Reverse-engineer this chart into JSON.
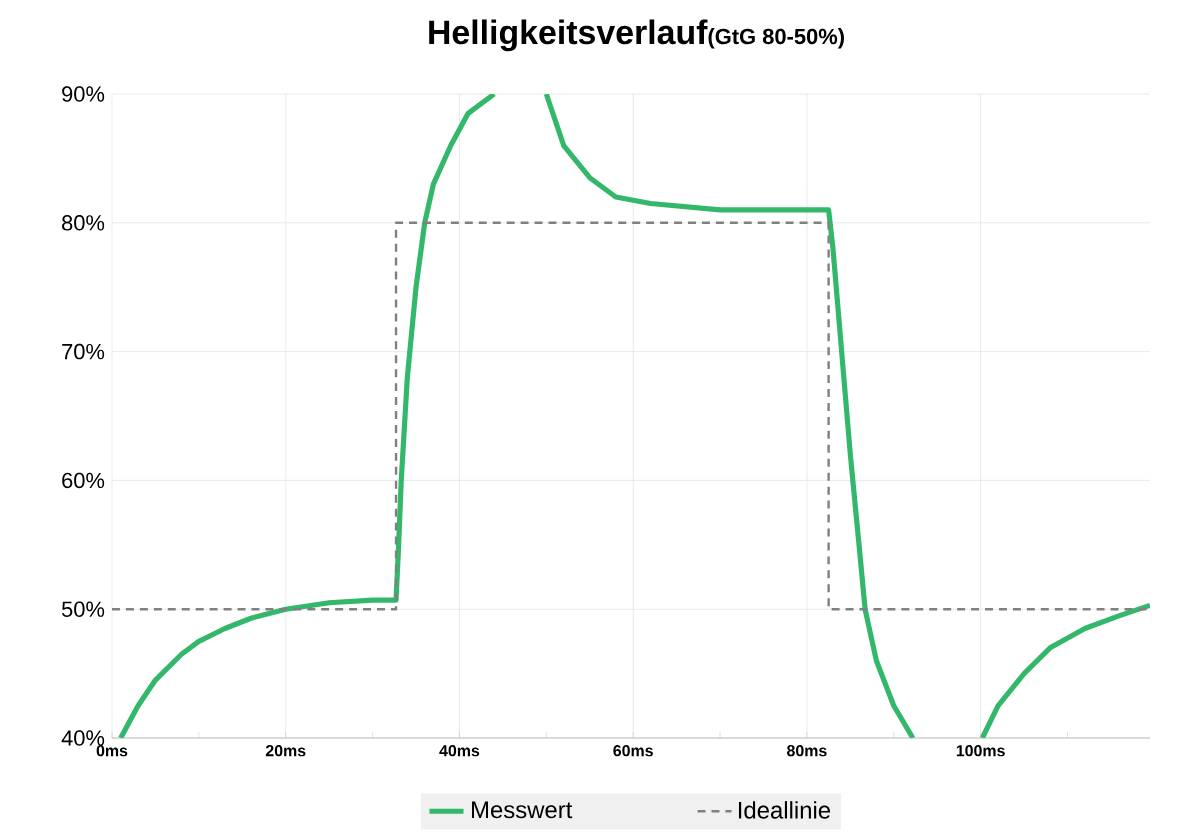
{
  "chart_data": {
    "type": "line",
    "title": "Helligkeitsverlauf",
    "subtitle": "(GtG 80-50%)",
    "xlim": [
      0,
      119.5
    ],
    "ylim": [
      40,
      90
    ],
    "xticks": [
      {
        "value": 0,
        "label": "0ms"
      },
      {
        "value": 10,
        "label": null
      },
      {
        "value": 20,
        "label": "20ms"
      },
      {
        "value": 30,
        "label": null
      },
      {
        "value": 40,
        "label": "40ms"
      },
      {
        "value": 50,
        "label": null
      },
      {
        "value": 60,
        "label": "60ms"
      },
      {
        "value": 70,
        "label": null
      },
      {
        "value": 80,
        "label": "80ms"
      },
      {
        "value": 90,
        "label": null
      },
      {
        "value": 100,
        "label": "100ms"
      },
      {
        "value": 110,
        "label": null
      }
    ],
    "yticks": [
      {
        "value": 40,
        "label": "40%"
      },
      {
        "value": 50,
        "label": "50%"
      },
      {
        "value": 60,
        "label": "60%"
      },
      {
        "value": 70,
        "label": "70%"
      },
      {
        "value": 80,
        "label": "80%"
      },
      {
        "value": 90,
        "label": "90%"
      }
    ],
    "grid": true,
    "legend": "bottom",
    "marker": "none",
    "series": [
      {
        "name": "Messwert",
        "color": "#33b86b",
        "line_style": "solid",
        "x": [
          1,
          3,
          5,
          8,
          10,
          13,
          16,
          20,
          25,
          30,
          32.7,
          33,
          33.3,
          34,
          35,
          36,
          37,
          39,
          41,
          44,
          47,
          50,
          52,
          55,
          58,
          62,
          70,
          80,
          82.5,
          83,
          84,
          85,
          86,
          86.7,
          88,
          90,
          92.2,
          96,
          100.2,
          102,
          105,
          108,
          112,
          116,
          119.5
        ],
        "values": [
          40,
          42.5,
          44.5,
          46.5,
          47.5,
          48.5,
          49.3,
          50,
          50.5,
          50.7,
          50.7,
          55,
          60,
          68,
          75,
          80,
          83,
          86,
          88.5,
          90,
          null,
          90,
          86,
          83.5,
          82,
          81.5,
          81,
          81,
          81,
          78,
          70,
          62,
          55,
          50,
          46,
          42.5,
          40,
          null,
          40,
          42.5,
          45,
          47,
          48.5,
          49.5,
          50.3
        ]
      },
      {
        "name": "Ideallinie",
        "color": "#808080",
        "line_style": "dashed",
        "x": [
          0,
          32.7,
          32.7,
          82.5,
          82.5,
          119.5
        ],
        "values": [
          50,
          50,
          80,
          80,
          50,
          50
        ]
      }
    ]
  }
}
